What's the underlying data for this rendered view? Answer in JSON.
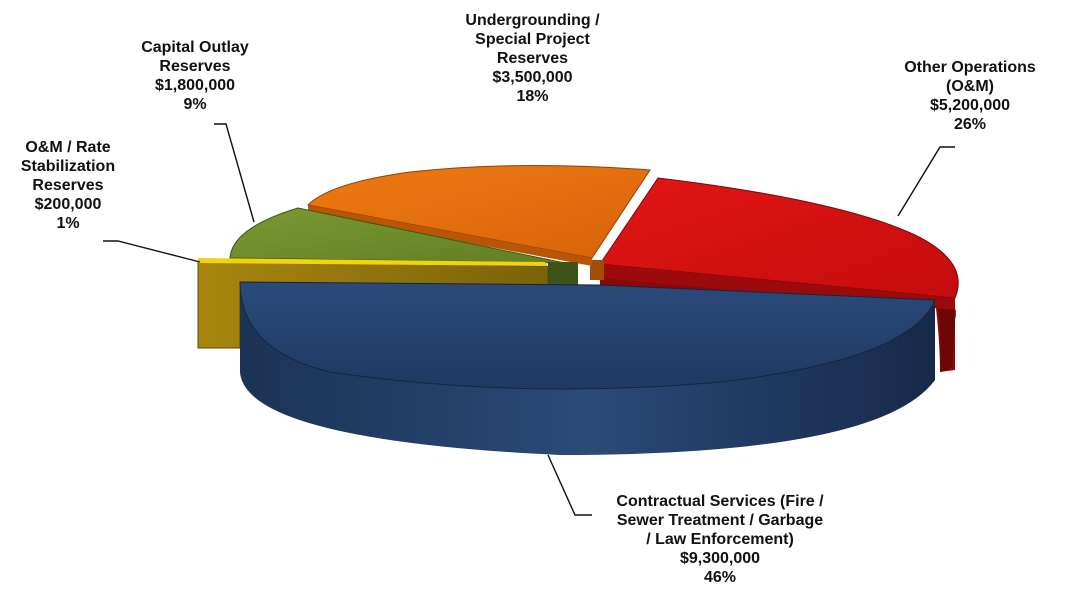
{
  "chart_data": {
    "type": "pie",
    "style": "3d-exploded",
    "legend": "none",
    "slices": [
      {
        "label": "Contractual Services (Fire / Sewer Treatment / Garbage / Law Enforcement)",
        "value": 9300000,
        "value_label": "$9,300,000",
        "percent": "46%",
        "color": "#1f3a63"
      },
      {
        "label": "O&M / Rate Stabilization Reserves",
        "value": 200000,
        "value_label": "$200,000",
        "percent": "1%",
        "color": "#e6c800"
      },
      {
        "label": "Capital Outlay Reserves",
        "value": 1800000,
        "value_label": "$1,800,000",
        "percent": "9%",
        "color": "#6f8e2b"
      },
      {
        "label": "Undergrounding / Special Project Reserves",
        "value": 3500000,
        "value_label": "$3,500,000",
        "percent": "18%",
        "color": "#e06b0c"
      },
      {
        "label": "Other Operations (O&M)",
        "value": 5200000,
        "value_label": "$5,200,000",
        "percent": "26%",
        "color": "#d40f0f"
      }
    ]
  },
  "labels": {
    "other_operations": {
      "l1": "Other Operations",
      "l2": "(O&M)",
      "l3": "$5,200,000",
      "l4": "26%"
    },
    "undergrounding": {
      "l1": "Undergrounding  /",
      "l2": "Special Project",
      "l3": "Reserves",
      "l4": "$3,500,000",
      "l5": "18%"
    },
    "capital_outlay": {
      "l1": "Capital Outlay",
      "l2": "Reserves",
      "l3": "$1,800,000",
      "l4": "9%"
    },
    "om_rate": {
      "l1": "O&M / Rate",
      "l2": "Stabilization",
      "l3": "Reserves",
      "l4": "$200,000",
      "l5": "1%"
    },
    "contractual": {
      "l1": "Contractual  Services (Fire /",
      "l2": "Sewer Treatment / Garbage",
      "l3": "/ Law Enforcement)",
      "l4": "$9,300,000",
      "l5": "46%"
    }
  }
}
